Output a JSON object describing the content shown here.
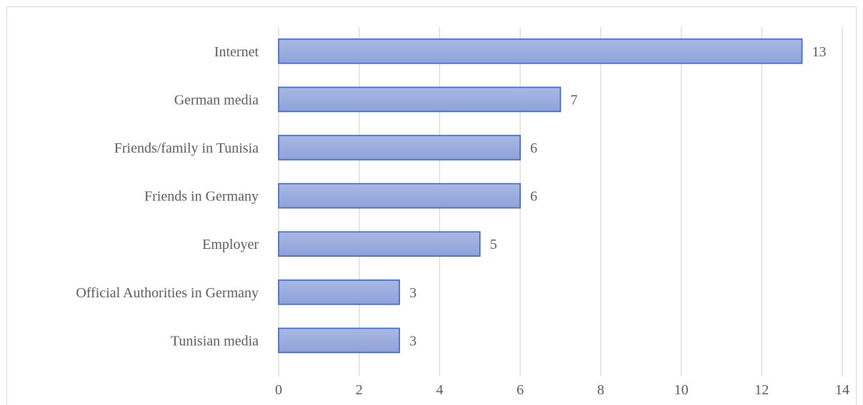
{
  "chart_data": {
    "type": "bar",
    "orientation": "horizontal",
    "categories": [
      "Internet",
      "German media",
      "Friends/family in Tunisia",
      "Friends in Germany",
      "Employer",
      "Official Authorities in Germany",
      "Tunisian media"
    ],
    "values": [
      13,
      7,
      6,
      6,
      5,
      3,
      3
    ],
    "data_labels": [
      "13",
      "7",
      "6",
      "6",
      "5",
      "3",
      "3"
    ],
    "xlim": [
      0,
      14
    ],
    "x_ticks": [
      0,
      2,
      4,
      6,
      8,
      10,
      12,
      14
    ],
    "x_tick_labels": [
      "0",
      "2",
      "4",
      "6",
      "8",
      "10",
      "12",
      "14"
    ],
    "title": "",
    "xlabel": "",
    "ylabel": "",
    "grid": "vertical",
    "legend": "none",
    "colors": {
      "bar_fill_top": "#a9b8e4",
      "bar_fill_bottom": "#8fa2d8",
      "bar_stroke": "#3a63c4",
      "gridline": "#d9d9d9",
      "text": "#595959"
    }
  }
}
